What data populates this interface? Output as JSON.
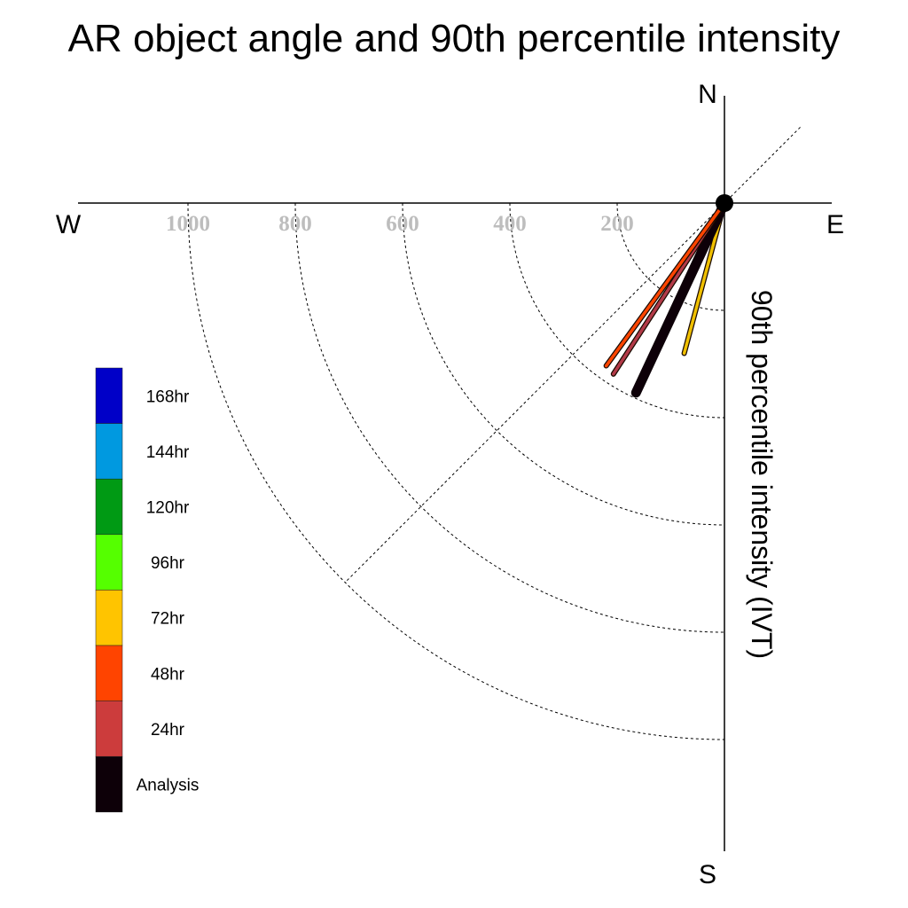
{
  "chart_data": {
    "type": "polar-vector",
    "title": "AR object angle and 90th percentile intensity",
    "radial_label": "90th percentile intensity (IVT)",
    "compass": {
      "n": "N",
      "e": "E",
      "s": "S",
      "w": "W"
    },
    "radial_ticks": [
      200,
      400,
      600,
      800,
      1000
    ],
    "radial_tick_labels": [
      "200",
      "400",
      "600",
      "800",
      "1000"
    ],
    "rmax": 1200,
    "series": [
      {
        "name": "72hr",
        "angle_deg": 195,
        "intensity": 290,
        "color": "#f0c000"
      },
      {
        "name": "Analysis",
        "angle_deg": 205,
        "intensity": 390,
        "color": "#0d0008"
      },
      {
        "name": "24hr",
        "angle_deg": 213,
        "intensity": 380,
        "color": "#b23a48"
      },
      {
        "name": "48hr",
        "angle_deg": 216,
        "intensity": 375,
        "color": "#ff4500"
      }
    ],
    "legend": [
      {
        "label": "168hr",
        "color": "#0000c8"
      },
      {
        "label": "144hr",
        "color": "#0099e0"
      },
      {
        "label": "120hr",
        "color": "#009a14"
      },
      {
        "label": "96hr",
        "color": "#55ff00"
      },
      {
        "label": "72hr",
        "color": "#ffc400"
      },
      {
        "label": "48hr",
        "color": "#ff4400"
      },
      {
        "label": "24hr",
        "color": "#cc3c3c"
      },
      {
        "label": "Analysis",
        "color": "#0d0008"
      }
    ]
  }
}
